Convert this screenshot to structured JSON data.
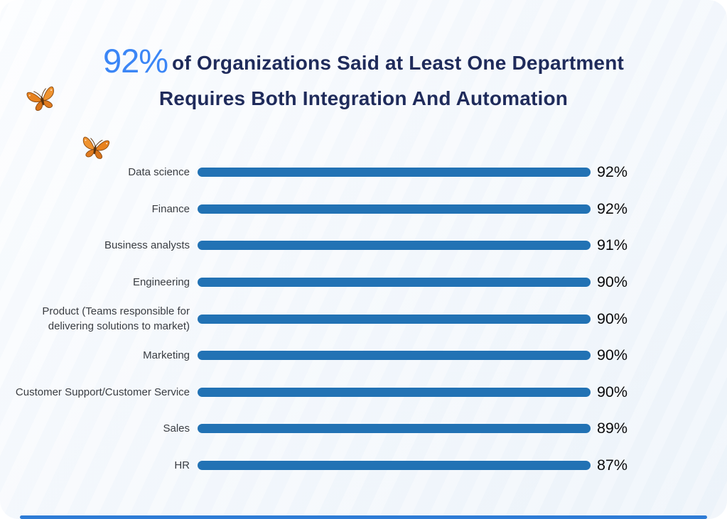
{
  "page": {
    "title": {
      "highlight": "92%",
      "line1_rest": "of Organizations Said at Least One Department",
      "line2": "Requires Both Integration And Automation"
    },
    "colors": {
      "title_highlight": "#3b86f6",
      "title_text": "#1f2b5b",
      "bar": "#2272b4",
      "bottom_accent": "#2e7cd6",
      "category_label": "#3a3d42",
      "value_label": "#0b0b0c",
      "card_background": "#f4f8fc"
    },
    "decorations": [
      "butterfly-icon",
      "butterfly-icon"
    ]
  },
  "chart_data": {
    "type": "bar",
    "orientation": "horizontal",
    "title": "92% of Organizations Said at Least One Department Requires Both Integration And Automation",
    "categories": [
      "Data science",
      "Finance",
      "Business analysts",
      "Engineering",
      "Product (Teams responsible for delivering solutions to market)",
      "Marketing",
      "Customer Support/Customer Service",
      "Sales",
      "HR"
    ],
    "values": [
      92,
      92,
      91,
      90,
      90,
      90,
      90,
      89,
      87
    ],
    "value_suffix": "%",
    "xlabel": "",
    "ylabel": "",
    "xlim": [
      0,
      100
    ],
    "grid": false,
    "legend": false,
    "bar_labels_shown": true
  }
}
